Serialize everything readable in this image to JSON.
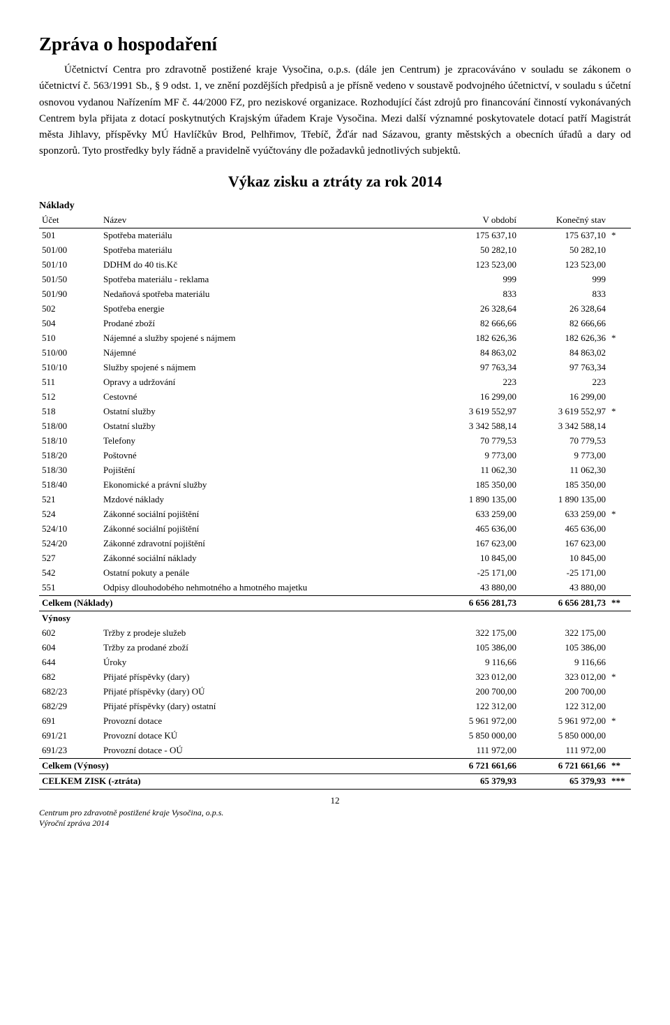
{
  "title": "Zpráva o hospodaření",
  "paragraph": "Účetnictví Centra pro zdravotně postižené kraje Vysočina, o.p.s. (dále jen Centrum) je zpracováváno v souladu se zákonem o účetnictví č. 563/1991 Sb., § 9 odst. 1, ve znění pozdějších předpisů a je přísně vedeno v soustavě podvojného účetnictví, v souladu s účetní osnovou vydanou Nařízením MF č. 44/2000 FZ, pro neziskové organizace. Rozhodující část zdrojů pro financování činností vykonávaných Centrem byla přijata z dotací poskytnutých Krajským úřadem Kraje Vysočina. Mezi další významné poskytovatele dotací patří Magistrát města Jihlavy, příspěvky MÚ Havlíčkův Brod, Pelhřimov, Třebíč, Žďár nad Sázavou, granty městských a obecních úřadů a dary od sponzorů. Tyto prostředky byly řádně a pravidelně vyúčtovány dle požadavků jednotlivých subjektů.",
  "subtitle": "Výkaz zisku a ztráty za rok 2014",
  "labels": {
    "naklady": "Náklady",
    "vynosy": "Výnosy",
    "ucet": "Účet",
    "nazev": "Název",
    "period": "V období",
    "final": "Konečný stav",
    "totals_naklady": "Celkem (Náklady)",
    "totals_vynosy": "Celkem (Výnosy)",
    "grand": "CELKEM ZISK (-ztráta)"
  },
  "naklady_rows": [
    {
      "u": "501",
      "n": "Spotřeba materiálu",
      "a": "175 637,10",
      "b": "175 637,10",
      "m": "*"
    },
    {
      "u": "501/00",
      "n": "Spotřeba materiálu",
      "a": "50 282,10",
      "b": "50 282,10",
      "m": ""
    },
    {
      "u": "501/10",
      "n": "DDHM do 40 tis.Kč",
      "a": "123 523,00",
      "b": "123 523,00",
      "m": ""
    },
    {
      "u": "501/50",
      "n": "Spotřeba materiálu - reklama",
      "a": "999",
      "b": "999",
      "m": ""
    },
    {
      "u": "501/90",
      "n": "Nedaňová spotřeba materiálu",
      "a": "833",
      "b": "833",
      "m": ""
    },
    {
      "u": "502",
      "n": "Spotřeba energie",
      "a": "26 328,64",
      "b": "26 328,64",
      "m": ""
    },
    {
      "u": "504",
      "n": "Prodané zboží",
      "a": "82 666,66",
      "b": "82 666,66",
      "m": ""
    },
    {
      "u": "510",
      "n": "Nájemné a služby spojené s nájmem",
      "a": "182 626,36",
      "b": "182 626,36",
      "m": "*"
    },
    {
      "u": "510/00",
      "n": "Nájemné",
      "a": "84 863,02",
      "b": "84 863,02",
      "m": ""
    },
    {
      "u": "510/10",
      "n": "Služby spojené s nájmem",
      "a": "97 763,34",
      "b": "97 763,34",
      "m": ""
    },
    {
      "u": "511",
      "n": "Opravy a udržování",
      "a": "223",
      "b": "223",
      "m": ""
    },
    {
      "u": "512",
      "n": "Cestovné",
      "a": "16 299,00",
      "b": "16 299,00",
      "m": ""
    },
    {
      "u": "518",
      "n": "Ostatní služby",
      "a": "3 619 552,97",
      "b": "3 619 552,97",
      "m": "*"
    },
    {
      "u": "518/00",
      "n": "Ostatní služby",
      "a": "3 342 588,14",
      "b": "3 342 588,14",
      "m": ""
    },
    {
      "u": "518/10",
      "n": "Telefony",
      "a": "70 779,53",
      "b": "70 779,53",
      "m": ""
    },
    {
      "u": "518/20",
      "n": "Poštovné",
      "a": "9 773,00",
      "b": "9 773,00",
      "m": ""
    },
    {
      "u": "518/30",
      "n": "Pojištění",
      "a": "11 062,30",
      "b": "11 062,30",
      "m": ""
    },
    {
      "u": "518/40",
      "n": "Ekonomické a právní služby",
      "a": "185 350,00",
      "b": "185 350,00",
      "m": ""
    },
    {
      "u": "521",
      "n": "Mzdové náklady",
      "a": "1 890 135,00",
      "b": "1 890 135,00",
      "m": ""
    },
    {
      "u": "524",
      "n": "Zákonné sociální pojištění",
      "a": "633 259,00",
      "b": "633 259,00",
      "m": "*"
    },
    {
      "u": "524/10",
      "n": "Zákonné sociální pojištění",
      "a": "465 636,00",
      "b": "465 636,00",
      "m": ""
    },
    {
      "u": "524/20",
      "n": "Zákonné zdravotní pojištění",
      "a": "167 623,00",
      "b": "167 623,00",
      "m": ""
    },
    {
      "u": "527",
      "n": "Zákonné sociální náklady",
      "a": "10 845,00",
      "b": "10 845,00",
      "m": ""
    },
    {
      "u": "542",
      "n": "Ostatní pokuty a penále",
      "a": "-25 171,00",
      "b": "-25 171,00",
      "m": ""
    },
    {
      "u": "551",
      "n": "Odpisy dlouhodobého nehmotného a hmotného majetku",
      "a": "43 880,00",
      "b": "43 880,00",
      "m": ""
    }
  ],
  "naklady_total": {
    "a": "6 656 281,73",
    "b": "6 656 281,73",
    "m": "**"
  },
  "vynosy_rows": [
    {
      "u": "602",
      "n": "Tržby z prodeje služeb",
      "a": "322 175,00",
      "b": "322 175,00",
      "m": ""
    },
    {
      "u": "604",
      "n": "Tržby za prodané zboží",
      "a": "105 386,00",
      "b": "105 386,00",
      "m": ""
    },
    {
      "u": "644",
      "n": "Úroky",
      "a": "9 116,66",
      "b": "9 116,66",
      "m": ""
    },
    {
      "u": "682",
      "n": "Přijaté příspěvky (dary)",
      "a": "323 012,00",
      "b": "323 012,00",
      "m": "*"
    },
    {
      "u": "682/23",
      "n": "Přijaté příspěvky (dary) OÚ",
      "a": "200 700,00",
      "b": "200 700,00",
      "m": ""
    },
    {
      "u": "682/29",
      "n": "Přijaté příspěvky (dary) ostatní",
      "a": "122 312,00",
      "b": "122 312,00",
      "m": ""
    },
    {
      "u": "691",
      "n": "Provozní dotace",
      "a": "5 961 972,00",
      "b": "5 961 972,00",
      "m": "*"
    },
    {
      "u": "691/21",
      "n": "Provozní dotace KÚ",
      "a": "5 850 000,00",
      "b": "5 850 000,00",
      "m": ""
    },
    {
      "u": "691/23",
      "n": "Provozní dotace - OÚ",
      "a": "111 972,00",
      "b": "111 972,00",
      "m": ""
    }
  ],
  "vynosy_total": {
    "a": "6 721 661,66",
    "b": "6 721 661,66",
    "m": "**"
  },
  "grand_total": {
    "a": "65 379,93",
    "b": "65 379,93",
    "m": "***"
  },
  "footer": {
    "page": "12",
    "line1": "Centrum pro zdravotně postižené kraje Vysočina, o.p.s.",
    "line2": "Výroční zpráva 2014"
  }
}
